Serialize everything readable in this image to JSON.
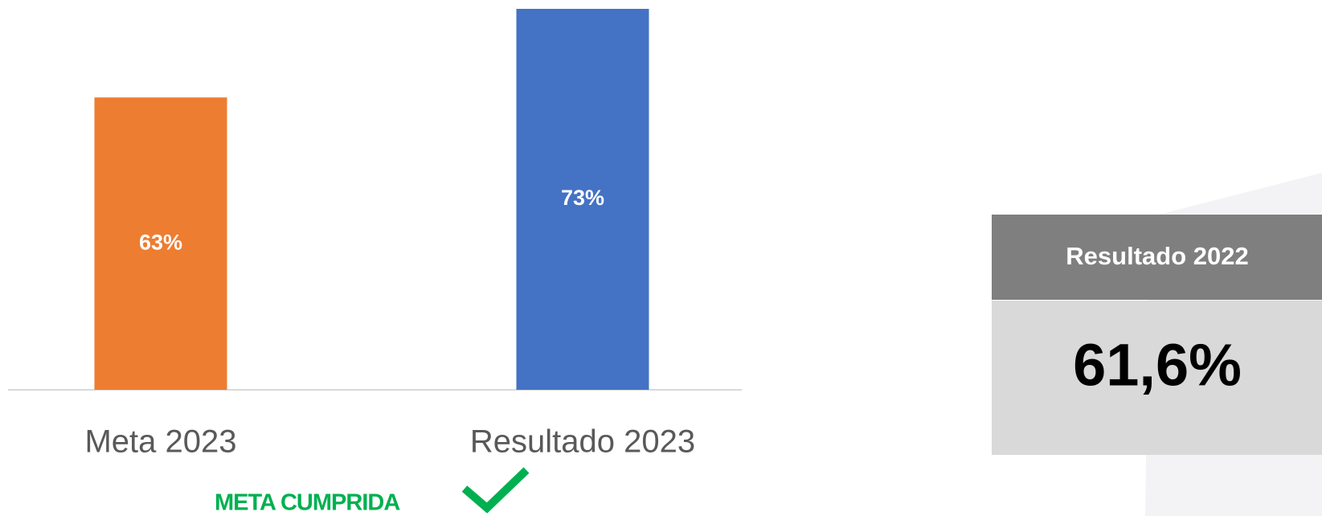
{
  "chart_data": {
    "type": "bar",
    "categories": [
      "Meta 2023",
      "Resultado 2023"
    ],
    "values": [
      63,
      73
    ],
    "value_labels": [
      "63%",
      "73%"
    ],
    "colors": [
      "#ed7d31",
      "#4472c4"
    ],
    "ylim": [
      30,
      74
    ],
    "annotation": "META CUMPRIDA"
  },
  "summary_box": {
    "title": "Resultado 2022",
    "value": "61,6%"
  }
}
